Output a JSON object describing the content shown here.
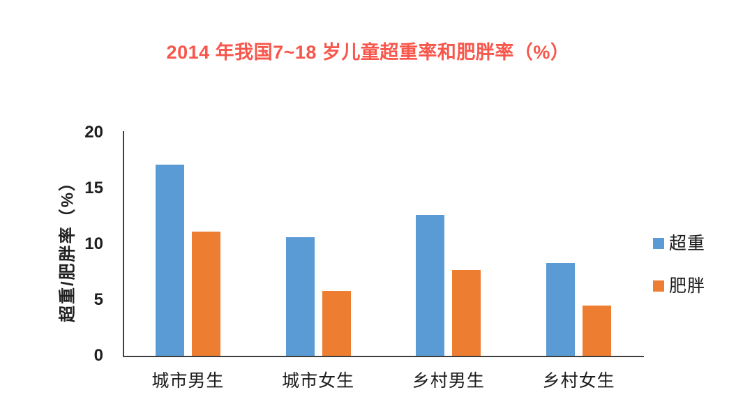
{
  "title": {
    "text": "2014 年我国7~18 岁儿童超重率和肥胖率（%）",
    "color": "#F8564B"
  },
  "chart_data": {
    "type": "bar",
    "categories": [
      "城市男生",
      "城市女生",
      "乡村男生",
      "乡村女生"
    ],
    "series": [
      {
        "name": "超重",
        "color": "#5B9BD5",
        "values": [
          17.1,
          10.6,
          12.6,
          8.3
        ]
      },
      {
        "name": "肥胖",
        "color": "#ED7D31",
        "values": [
          11.1,
          5.8,
          7.7,
          4.5
        ]
      }
    ],
    "title": "2014 年我国7~18 岁儿童超重率和肥胖率（%）",
    "xlabel": "",
    "ylabel": "超重/肥胖率（%）",
    "ylim": [
      0,
      20
    ],
    "yticks": [
      0,
      5,
      10,
      15,
      20
    ],
    "grid": false,
    "legend_position": "right",
    "axis_color": "#3f3f3f"
  }
}
